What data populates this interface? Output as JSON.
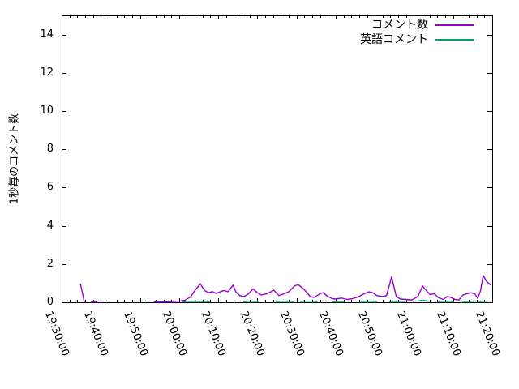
{
  "chart_data": {
    "type": "line",
    "title": "",
    "xlabel": "",
    "ylabel": "1秒毎のコメント数",
    "ylim": [
      0,
      15
    ],
    "yticks": [
      0,
      2,
      4,
      6,
      8,
      10,
      12,
      14
    ],
    "xticks": [
      "19:30:00",
      "19:40:00",
      "19:50:00",
      "20:00:00",
      "20:10:00",
      "20:20:00",
      "20:30:00",
      "20:40:00",
      "20:50:00",
      "21:00:00",
      "21:10:00",
      "21:20:00"
    ],
    "x_range_minutes": [
      0,
      110
    ],
    "x_major_step_min": 10,
    "x_minor_step_min": 2,
    "grid": false,
    "legend_position": "top-right-inside",
    "axis_color": "#000000",
    "background_color": "#ffffff",
    "legend": [
      {
        "name": "コメント数",
        "color": "#9400d3"
      },
      {
        "name": "英語コメント",
        "color": "#009e73"
      }
    ],
    "series": [
      {
        "name": "コメント数",
        "color": "#9400d3",
        "points": [
          [
            4.8,
            0.97
          ],
          [
            5.8,
            0.02
          ],
          null,
          [
            7.5,
            0.03
          ],
          [
            9.1,
            0.03
          ],
          null,
          [
            23.6,
            0.02
          ],
          [
            26,
            0.02
          ],
          [
            28,
            0.04
          ],
          [
            30,
            0.06
          ],
          [
            31.5,
            0.1
          ],
          [
            33,
            0.3
          ],
          [
            34,
            0.6
          ],
          [
            35.4,
            0.97
          ],
          [
            36.5,
            0.62
          ],
          [
            37.5,
            0.5
          ],
          [
            38.5,
            0.56
          ],
          [
            39.5,
            0.46
          ],
          [
            40.5,
            0.55
          ],
          [
            41.5,
            0.62
          ],
          [
            42.5,
            0.55
          ],
          [
            43.8,
            0.9
          ],
          [
            44.5,
            0.55
          ],
          [
            45.5,
            0.35
          ],
          [
            46.5,
            0.3
          ],
          [
            47.5,
            0.4
          ],
          [
            48.9,
            0.7
          ],
          [
            50,
            0.5
          ],
          [
            51,
            0.38
          ],
          [
            52.5,
            0.45
          ],
          [
            54.2,
            0.63
          ],
          [
            55.5,
            0.35
          ],
          [
            56.5,
            0.42
          ],
          [
            58,
            0.55
          ],
          [
            59.5,
            0.85
          ],
          [
            60.4,
            0.93
          ],
          [
            61.5,
            0.75
          ],
          [
            62.5,
            0.55
          ],
          [
            63.5,
            0.3
          ],
          [
            64.5,
            0.25
          ],
          [
            66,
            0.45
          ],
          [
            66.8,
            0.5
          ],
          [
            68,
            0.3
          ],
          [
            69,
            0.2
          ],
          [
            70,
            0.17
          ],
          [
            71.5,
            0.22
          ],
          [
            73,
            0.15
          ],
          [
            74.5,
            0.2
          ],
          [
            76,
            0.3
          ],
          [
            77,
            0.42
          ],
          [
            78.5,
            0.55
          ],
          [
            79.5,
            0.5
          ],
          [
            80.5,
            0.35
          ],
          [
            82,
            0.3
          ],
          [
            83,
            0.35
          ],
          [
            84.3,
            1.33
          ],
          [
            85.5,
            0.3
          ],
          [
            86.5,
            0.17
          ],
          [
            88,
            0.15
          ],
          [
            89.5,
            0.12
          ],
          [
            91,
            0.3
          ],
          [
            92.2,
            0.85
          ],
          [
            93.2,
            0.6
          ],
          [
            94.2,
            0.4
          ],
          [
            95.2,
            0.45
          ],
          [
            96.2,
            0.25
          ],
          [
            97.5,
            0.15
          ],
          [
            98.5,
            0.3
          ],
          [
            99.5,
            0.25
          ],
          [
            100.5,
            0.15
          ],
          [
            101.5,
            0.12
          ],
          [
            102.5,
            0.38
          ],
          [
            103.5,
            0.45
          ],
          [
            104.5,
            0.5
          ],
          [
            105.5,
            0.45
          ],
          [
            106.3,
            0.2
          ],
          [
            107,
            0.6
          ],
          [
            107.7,
            1.4
          ],
          [
            108.5,
            1.1
          ],
          [
            109.6,
            0.9
          ]
        ]
      },
      {
        "name": "英語コメント",
        "color": "#009e73",
        "points": [
          [
            30.9,
            0.03
          ],
          [
            33,
            0.05
          ],
          [
            35,
            0.04
          ],
          [
            38,
            0.04
          ],
          null,
          [
            46.4,
            0.03
          ],
          [
            48,
            0.05
          ],
          [
            50.5,
            0.04
          ],
          null,
          [
            54.7,
            0.04
          ],
          [
            57,
            0.05
          ],
          [
            59.2,
            0.04
          ],
          null,
          [
            60.9,
            0.04
          ],
          [
            63,
            0.06
          ],
          [
            65.4,
            0.04
          ],
          null,
          [
            69.2,
            0.04
          ],
          [
            72.3,
            0.04
          ],
          null,
          [
            76.4,
            0.04
          ],
          [
            78,
            0.05
          ],
          [
            80.6,
            0.04
          ],
          null,
          [
            83.7,
            0.04
          ],
          [
            86,
            0.05
          ],
          [
            87.8,
            0.04
          ],
          null,
          [
            90.9,
            0.06
          ],
          [
            92.2,
            0.1
          ],
          [
            94,
            0.05
          ],
          null,
          [
            96,
            0.04
          ],
          [
            98,
            0.05
          ],
          [
            100.2,
            0.04
          ],
          null,
          [
            102.3,
            0.04
          ],
          [
            105.4,
            0.05
          ],
          null,
          [
            106.5,
            0.04
          ],
          [
            108.5,
            0.05
          ]
        ]
      }
    ]
  }
}
